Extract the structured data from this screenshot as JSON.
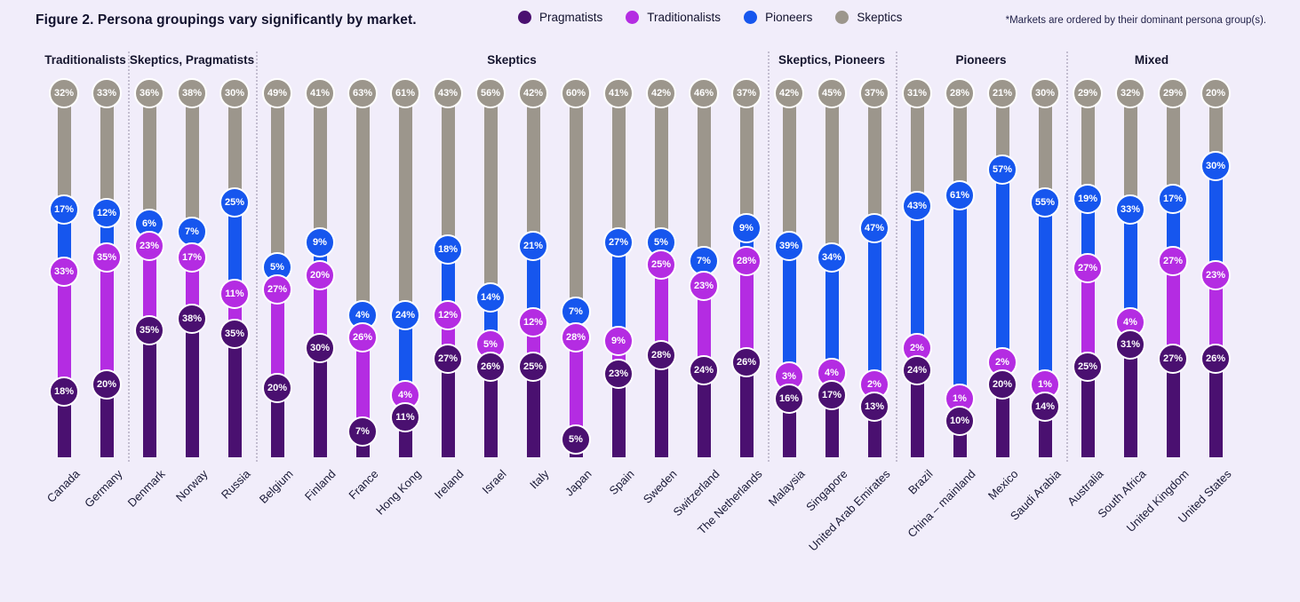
{
  "figure": {
    "title": "Figure 2. Persona groupings vary significantly by market.",
    "note": "*Markets are ordered by their dominant persona group(s)."
  },
  "legend": [
    {
      "label": "Pragmatists",
      "color": "#4a1070"
    },
    {
      "label": "Traditionalists",
      "color": "#b42ce2"
    },
    {
      "label": "Pioneers",
      "color": "#1656ee"
    },
    {
      "label": "Skeptics",
      "color": "#9c968c"
    }
  ],
  "chart_data": {
    "type": "bar",
    "subtype": "stacked-lollipop",
    "value_unit": "%",
    "ylim": [
      0,
      100
    ],
    "stack_order_top_to_bottom": [
      "Skeptics",
      "Pioneers",
      "Traditionalists",
      "Pragmatists"
    ],
    "series_colors": {
      "Pragmatists": "#4a1070",
      "Traditionalists": "#b42ce2",
      "Pioneers": "#1656ee",
      "Skeptics": "#9c968c"
    },
    "groups": [
      {
        "label": "Traditionalists",
        "markets": [
          {
            "name": "Canada",
            "values": {
              "Skeptics": 32,
              "Pioneers": 17,
              "Traditionalists": 33,
              "Pragmatists": 18
            }
          },
          {
            "name": "Germany",
            "values": {
              "Skeptics": 33,
              "Pioneers": 12,
              "Traditionalists": 35,
              "Pragmatists": 20
            }
          }
        ]
      },
      {
        "label": "Skeptics, Pragmatists",
        "markets": [
          {
            "name": "Denmark",
            "values": {
              "Skeptics": 36,
              "Pioneers": 6,
              "Traditionalists": 23,
              "Pragmatists": 35
            }
          },
          {
            "name": "Norway",
            "values": {
              "Skeptics": 38,
              "Pioneers": 7,
              "Traditionalists": 17,
              "Pragmatists": 38
            }
          },
          {
            "name": "Russia",
            "values": {
              "Skeptics": 30,
              "Pioneers": 25,
              "Traditionalists": 11,
              "Pragmatists": 35
            }
          }
        ]
      },
      {
        "label": "Skeptics",
        "markets": [
          {
            "name": "Belgium",
            "values": {
              "Skeptics": 49,
              "Pioneers": 5,
              "Traditionalists": 27,
              "Pragmatists": 20
            }
          },
          {
            "name": "Finland",
            "values": {
              "Skeptics": 41,
              "Pioneers": 9,
              "Traditionalists": 20,
              "Pragmatists": 30
            }
          },
          {
            "name": "France",
            "values": {
              "Skeptics": 63,
              "Pioneers": 4,
              "Traditionalists": 26,
              "Pragmatists": 7
            }
          },
          {
            "name": "Hong Kong",
            "values": {
              "Skeptics": 61,
              "Pioneers": 24,
              "Traditionalists": 4,
              "Pragmatists": 11
            }
          },
          {
            "name": "Ireland",
            "values": {
              "Skeptics": 43,
              "Pioneers": 18,
              "Traditionalists": 12,
              "Pragmatists": 27
            }
          },
          {
            "name": "Israel",
            "values": {
              "Skeptics": 56,
              "Pioneers": 14,
              "Traditionalists": 5,
              "Pragmatists": 26
            }
          },
          {
            "name": "Italy",
            "values": {
              "Skeptics": 42,
              "Pioneers": 21,
              "Traditionalists": 12,
              "Pragmatists": 25
            }
          },
          {
            "name": "Japan",
            "values": {
              "Skeptics": 60,
              "Pioneers": 7,
              "Traditionalists": 28,
              "Pragmatists": 5
            }
          },
          {
            "name": "Spain",
            "values": {
              "Skeptics": 41,
              "Pioneers": 27,
              "Traditionalists": 9,
              "Pragmatists": 23
            }
          },
          {
            "name": "Sweden",
            "values": {
              "Skeptics": 42,
              "Pioneers": 5,
              "Traditionalists": 25,
              "Pragmatists": 28
            }
          },
          {
            "name": "Switzerland",
            "values": {
              "Skeptics": 46,
              "Pioneers": 7,
              "Traditionalists": 23,
              "Pragmatists": 24
            }
          },
          {
            "name": "The Netherlands",
            "values": {
              "Skeptics": 37,
              "Pioneers": 9,
              "Traditionalists": 28,
              "Pragmatists": 26
            }
          }
        ]
      },
      {
        "label": "Skeptics, Pioneers",
        "markets": [
          {
            "name": "Malaysia",
            "values": {
              "Skeptics": 42,
              "Pioneers": 39,
              "Traditionalists": 3,
              "Pragmatists": 16
            }
          },
          {
            "name": "Singapore",
            "values": {
              "Skeptics": 45,
              "Pioneers": 34,
              "Traditionalists": 4,
              "Pragmatists": 17
            }
          },
          {
            "name": "United Arab Emirates",
            "values": {
              "Skeptics": 37,
              "Pioneers": 47,
              "Traditionalists": 2,
              "Pragmatists": 13
            }
          }
        ]
      },
      {
        "label": "Pioneers",
        "markets": [
          {
            "name": "Brazil",
            "values": {
              "Skeptics": 31,
              "Pioneers": 43,
              "Traditionalists": 2,
              "Pragmatists": 24
            }
          },
          {
            "name": "China – mainland",
            "values": {
              "Skeptics": 28,
              "Pioneers": 61,
              "Traditionalists": 1,
              "Pragmatists": 10
            }
          },
          {
            "name": "Mexico",
            "values": {
              "Skeptics": 21,
              "Pioneers": 57,
              "Traditionalists": 2,
              "Pragmatists": 20
            }
          },
          {
            "name": "Saudi Arabia",
            "values": {
              "Skeptics": 30,
              "Pioneers": 55,
              "Traditionalists": 1,
              "Pragmatists": 14
            }
          }
        ]
      },
      {
        "label": "Mixed",
        "markets": [
          {
            "name": "Australia",
            "values": {
              "Skeptics": 29,
              "Pioneers": 19,
              "Traditionalists": 27,
              "Pragmatists": 25
            }
          },
          {
            "name": "South Africa",
            "values": {
              "Skeptics": 32,
              "Pioneers": 33,
              "Traditionalists": 4,
              "Pragmatists": 31
            }
          },
          {
            "name": "United Kingdom",
            "values": {
              "Skeptics": 29,
              "Pioneers": 17,
              "Traditionalists": 27,
              "Pragmatists": 27
            }
          },
          {
            "name": "United States",
            "values": {
              "Skeptics": 20,
              "Pioneers": 30,
              "Traditionalists": 23,
              "Pragmatists": 26
            }
          }
        ]
      }
    ]
  }
}
